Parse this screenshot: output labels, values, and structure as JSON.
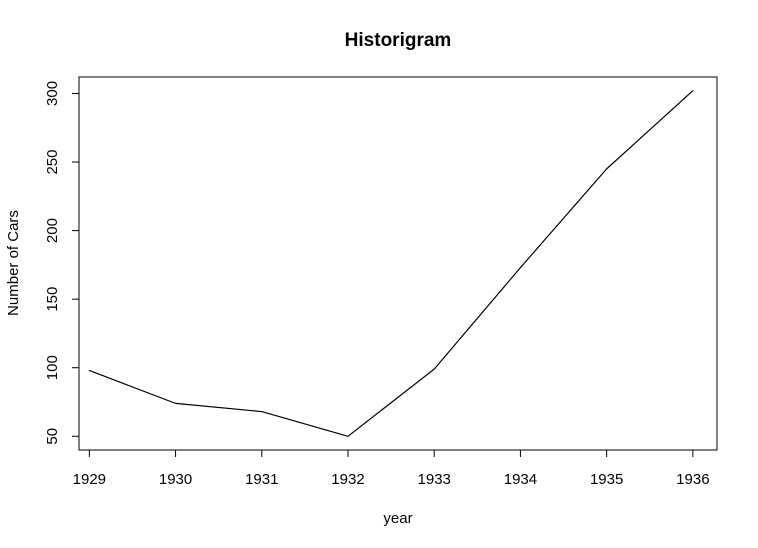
{
  "chart_data": {
    "type": "line",
    "title": "Historigram",
    "xlabel": "year",
    "ylabel": "Number of Cars",
    "x": [
      1929,
      1930,
      1931,
      1932,
      1933,
      1934,
      1935,
      1936
    ],
    "x_tick_labels": [
      "1929",
      "1930",
      "1931",
      "1932",
      "1933",
      "1934",
      "1935",
      "1936"
    ],
    "series": [
      {
        "name": "Number of Cars",
        "values": [
          98,
          74,
          68,
          50,
          99,
          173,
          245,
          302
        ]
      }
    ],
    "y_ticks": [
      50,
      100,
      150,
      200,
      250,
      300
    ],
    "y_tick_labels": [
      "50",
      "100",
      "150",
      "200",
      "250",
      "300"
    ],
    "xlim": [
      1928.88,
      1936.28
    ],
    "ylim": [
      40.0,
      312.0
    ],
    "grid": false,
    "line_color": "#000000"
  }
}
